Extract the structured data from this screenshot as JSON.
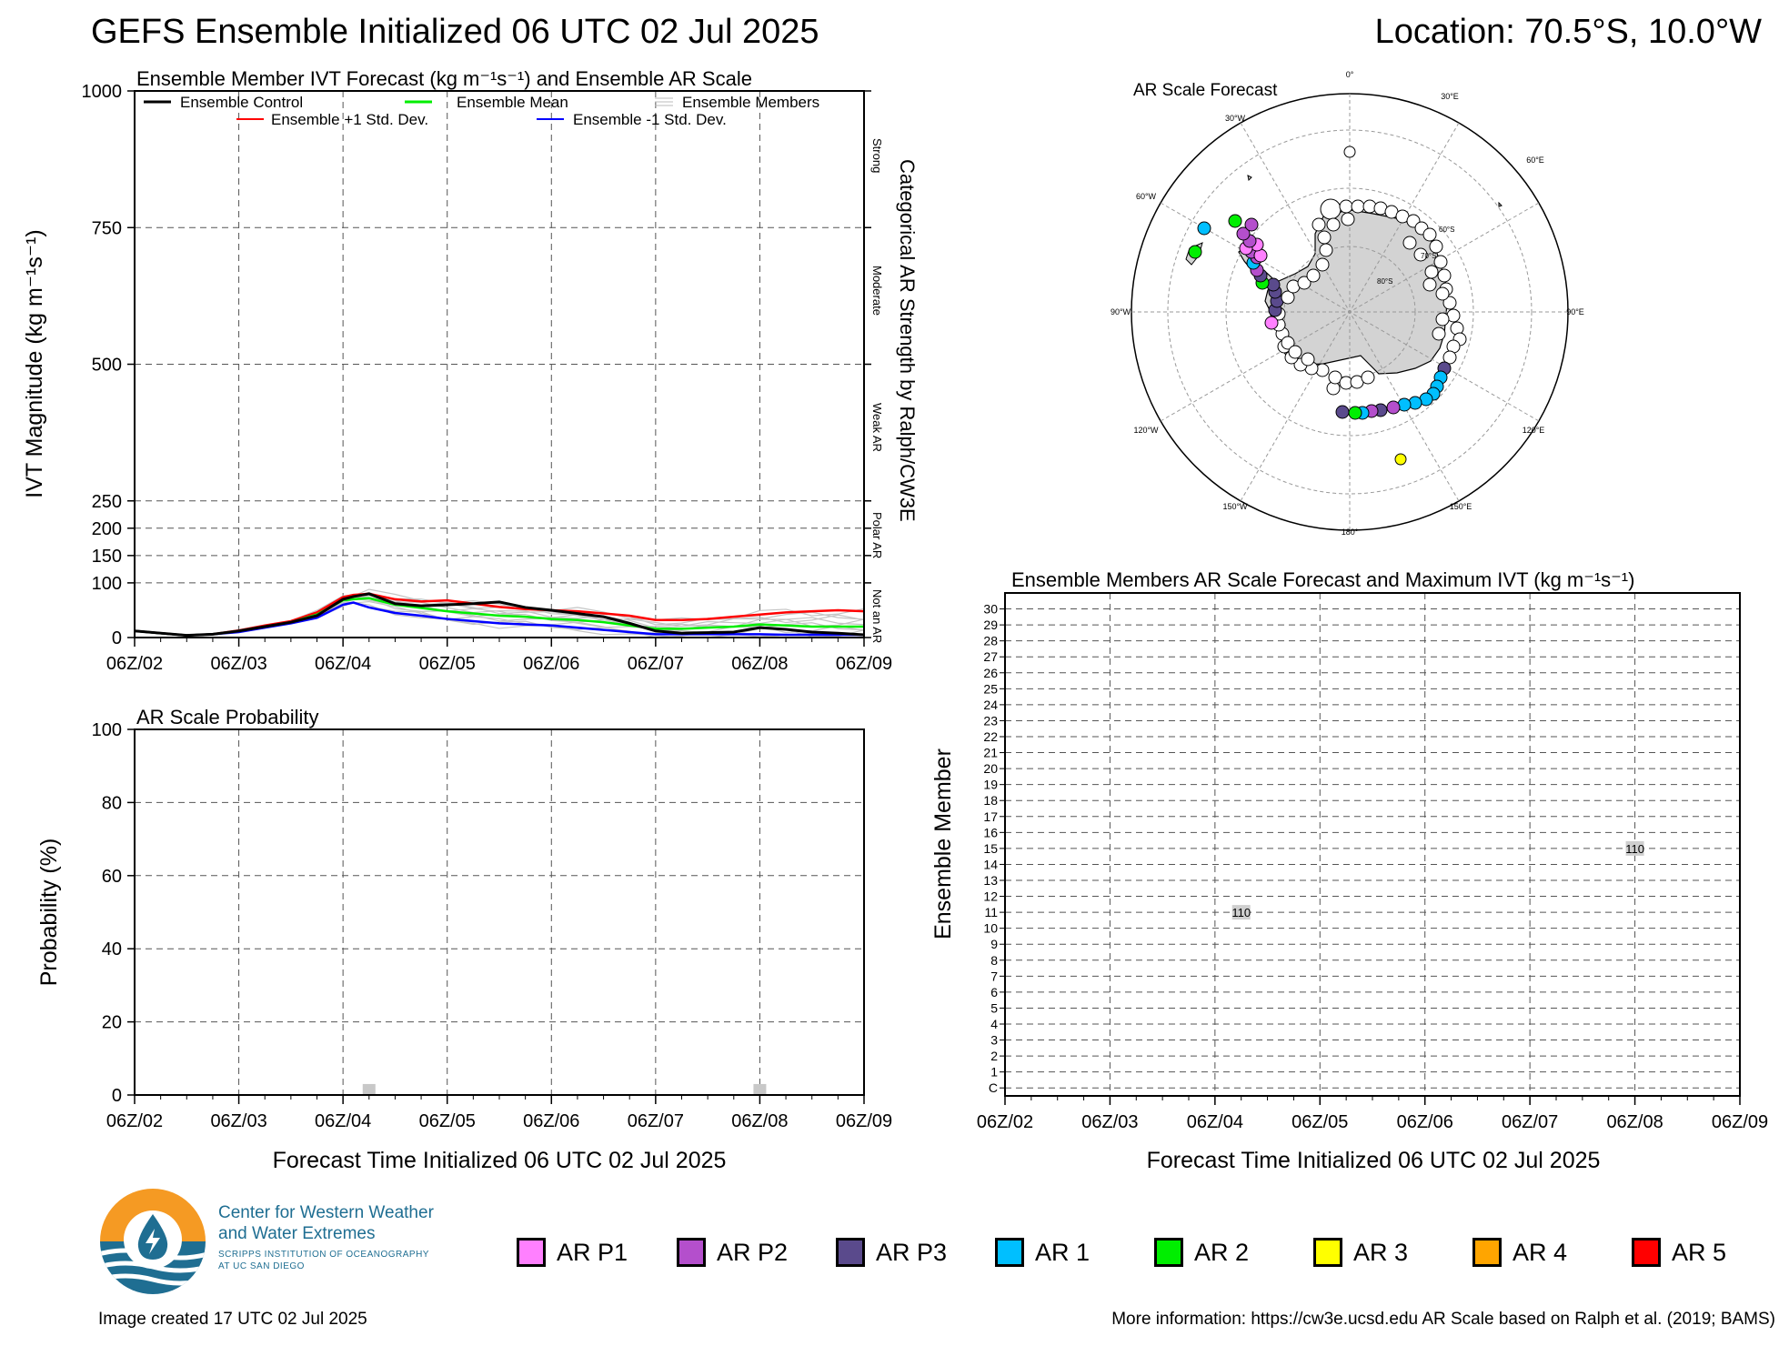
{
  "header": {
    "title": "GEFS Ensemble Initialized 06 UTC 02 Jul 2025",
    "location": "Location: 70.5°S, 10.0°W"
  },
  "ivt_panel": {
    "title": "Ensemble Member IVT Forecast (kg m⁻¹s⁻¹) and Ensemble AR Scale",
    "ylabel": "IVT Magnitude (kg m⁻¹s⁻¹)",
    "right_axis_label": "Categorical AR Strength by Ralph/CW3E",
    "categories": [
      "Strong",
      "Moderate",
      "Weak AR",
      "Polar AR",
      "Not an AR"
    ],
    "legend": {
      "control": "Ensemble Control",
      "mean": "Ensemble Mean",
      "members": "Ensemble Members",
      "plus": "Ensemble +1 Std. Dev.",
      "minus": "Ensemble -1 Std. Dev."
    }
  },
  "prob_panel": {
    "title": "AR Scale Probability",
    "ylabel": "Probability (%)",
    "xlabel": "Forecast Time Initialized 06 UTC 02 Jul 2025"
  },
  "map_panel": {
    "title": "AR Scale Forecast",
    "lon_labels": [
      "0°",
      "30°E",
      "60°E",
      "90°E",
      "120°E",
      "150°E",
      "180°",
      "150°W",
      "120°W",
      "90°W",
      "60°W",
      "30°W"
    ],
    "lat_labels": [
      "60°S",
      "70°S",
      "80°S"
    ]
  },
  "members_panel": {
    "title": "Ensemble Members AR Scale Forecast and Maximum IVT (kg m⁻¹s⁻¹)",
    "ylabel": "Ensemble Member",
    "xlabel": "Forecast Time Initialized 06 UTC 02 Jul 2025"
  },
  "logo": {
    "name_line1": "Center for Western Weather",
    "name_line2": "and Water Extremes",
    "sub_line1": "SCRIPPS INSTITUTION OF OCEANOGRAPHY",
    "sub_line2": "AT UC SAN DIEGO"
  },
  "ar_legend": [
    {
      "label": "AR P1",
      "color": "#ff80ff"
    },
    {
      "label": "AR P2",
      "color": "#b44fcc"
    },
    {
      "label": "AR P3",
      "color": "#5a4a8c"
    },
    {
      "label": "AR 1",
      "color": "#00bfff"
    },
    {
      "label": "AR 2",
      "color": "#00ee00"
    },
    {
      "label": "AR 3",
      "color": "#ffff00"
    },
    {
      "label": "AR 4",
      "color": "#ffa500"
    },
    {
      "label": "AR 5",
      "color": "#ff0000"
    }
  ],
  "footer": {
    "created": "Image created 17 UTC 02 Jul 2025",
    "info": "More information: https://cw3e.ucsd.edu AR Scale based on Ralph et al. (2019; BAMS)"
  },
  "chart_data": [
    {
      "type": "line",
      "title": "Ensemble Member IVT Forecast (kg m⁻¹s⁻¹) and Ensemble AR Scale",
      "ylabel": "IVT Magnitude (kg m⁻¹s⁻¹)",
      "x_ticks": [
        "06Z/02",
        "06Z/03",
        "06Z/04",
        "06Z/05",
        "06Z/06",
        "06Z/07",
        "06Z/08",
        "06Z/09"
      ],
      "y_ticks": [
        0,
        100,
        150,
        200,
        250,
        500,
        750,
        1000
      ],
      "ylim": [
        0,
        1000
      ],
      "x_unit": "days since 06Z/02",
      "x": [
        0,
        0.25,
        0.5,
        0.75,
        1,
        1.25,
        1.5,
        1.75,
        2,
        2.1,
        2.25,
        2.5,
        2.75,
        3,
        3.25,
        3.5,
        3.75,
        4,
        4.25,
        4.5,
        4.75,
        5,
        5.25,
        5.5,
        5.75,
        6,
        6.25,
        6.5,
        6.75,
        7
      ],
      "series": [
        {
          "name": "Ensemble Control",
          "color": "#000000",
          "values": [
            12,
            8,
            4,
            6,
            12,
            20,
            28,
            40,
            70,
            75,
            80,
            62,
            58,
            60,
            62,
            65,
            55,
            50,
            44,
            38,
            26,
            12,
            8,
            9,
            10,
            18,
            15,
            10,
            8,
            5
          ]
        },
        {
          "name": "Ensemble Mean",
          "color": "#00ee00",
          "values": [
            12,
            8,
            4,
            6,
            12,
            20,
            28,
            42,
            68,
            70,
            72,
            60,
            54,
            48,
            44,
            40,
            38,
            34,
            32,
            28,
            22,
            16,
            16,
            18,
            20,
            24,
            22,
            20,
            20,
            20
          ]
        },
        {
          "name": "Ensemble +1 Std. Dev.",
          "color": "#ff0000",
          "values": [
            12,
            8,
            4,
            6,
            13,
            22,
            30,
            46,
            74,
            78,
            80,
            70,
            66,
            68,
            62,
            56,
            52,
            50,
            48,
            44,
            40,
            32,
            32,
            34,
            38,
            42,
            46,
            48,
            50,
            48
          ]
        },
        {
          "name": "Ensemble -1 Std. Dev.",
          "color": "#0000ff",
          "values": [
            12,
            8,
            4,
            6,
            10,
            18,
            26,
            36,
            60,
            64,
            55,
            45,
            40,
            34,
            30,
            26,
            24,
            22,
            18,
            14,
            10,
            6,
            6,
            6,
            6,
            6,
            5,
            5,
            5,
            5
          ]
        }
      ],
      "right_categories": [
        "Strong",
        "Moderate",
        "Weak AR",
        "Polar AR",
        "Not an AR"
      ]
    },
    {
      "type": "bar",
      "title": "AR Scale Probability",
      "ylabel": "Probability (%)",
      "xlabel": "Forecast Time Initialized 06 UTC 02 Jul 2025",
      "ylim": [
        0,
        100
      ],
      "y_ticks": [
        0,
        20,
        40,
        60,
        80,
        100
      ],
      "x_ticks": [
        "06Z/02",
        "06Z/03",
        "06Z/04",
        "06Z/05",
        "06Z/06",
        "06Z/07",
        "06Z/08",
        "06Z/09"
      ],
      "bars": [
        {
          "x_day": 2.25,
          "value": 3
        },
        {
          "x_day": 6.0,
          "value": 3
        }
      ]
    },
    {
      "type": "scatter",
      "title": "Ensemble Members AR Scale Forecast and Maximum IVT (kg m⁻¹s⁻¹)",
      "ylabel": "Ensemble Member",
      "xlabel": "Forecast Time Initialized 06 UTC 02 Jul 2025",
      "y_categories": [
        "C",
        "1",
        "2",
        "3",
        "4",
        "5",
        "6",
        "7",
        "8",
        "9",
        "10",
        "11",
        "12",
        "13",
        "14",
        "15",
        "16",
        "17",
        "18",
        "19",
        "20",
        "21",
        "22",
        "23",
        "24",
        "25",
        "26",
        "27",
        "28",
        "29",
        "30"
      ],
      "x_ticks": [
        "06Z/02",
        "06Z/03",
        "06Z/04",
        "06Z/05",
        "06Z/06",
        "06Z/07",
        "06Z/08",
        "06Z/09"
      ],
      "points": [
        {
          "member": "11",
          "x_day": 2.25,
          "max_ivt": "110"
        },
        {
          "member": "15",
          "x_day": 6.0,
          "max_ivt": "110"
        }
      ]
    }
  ]
}
